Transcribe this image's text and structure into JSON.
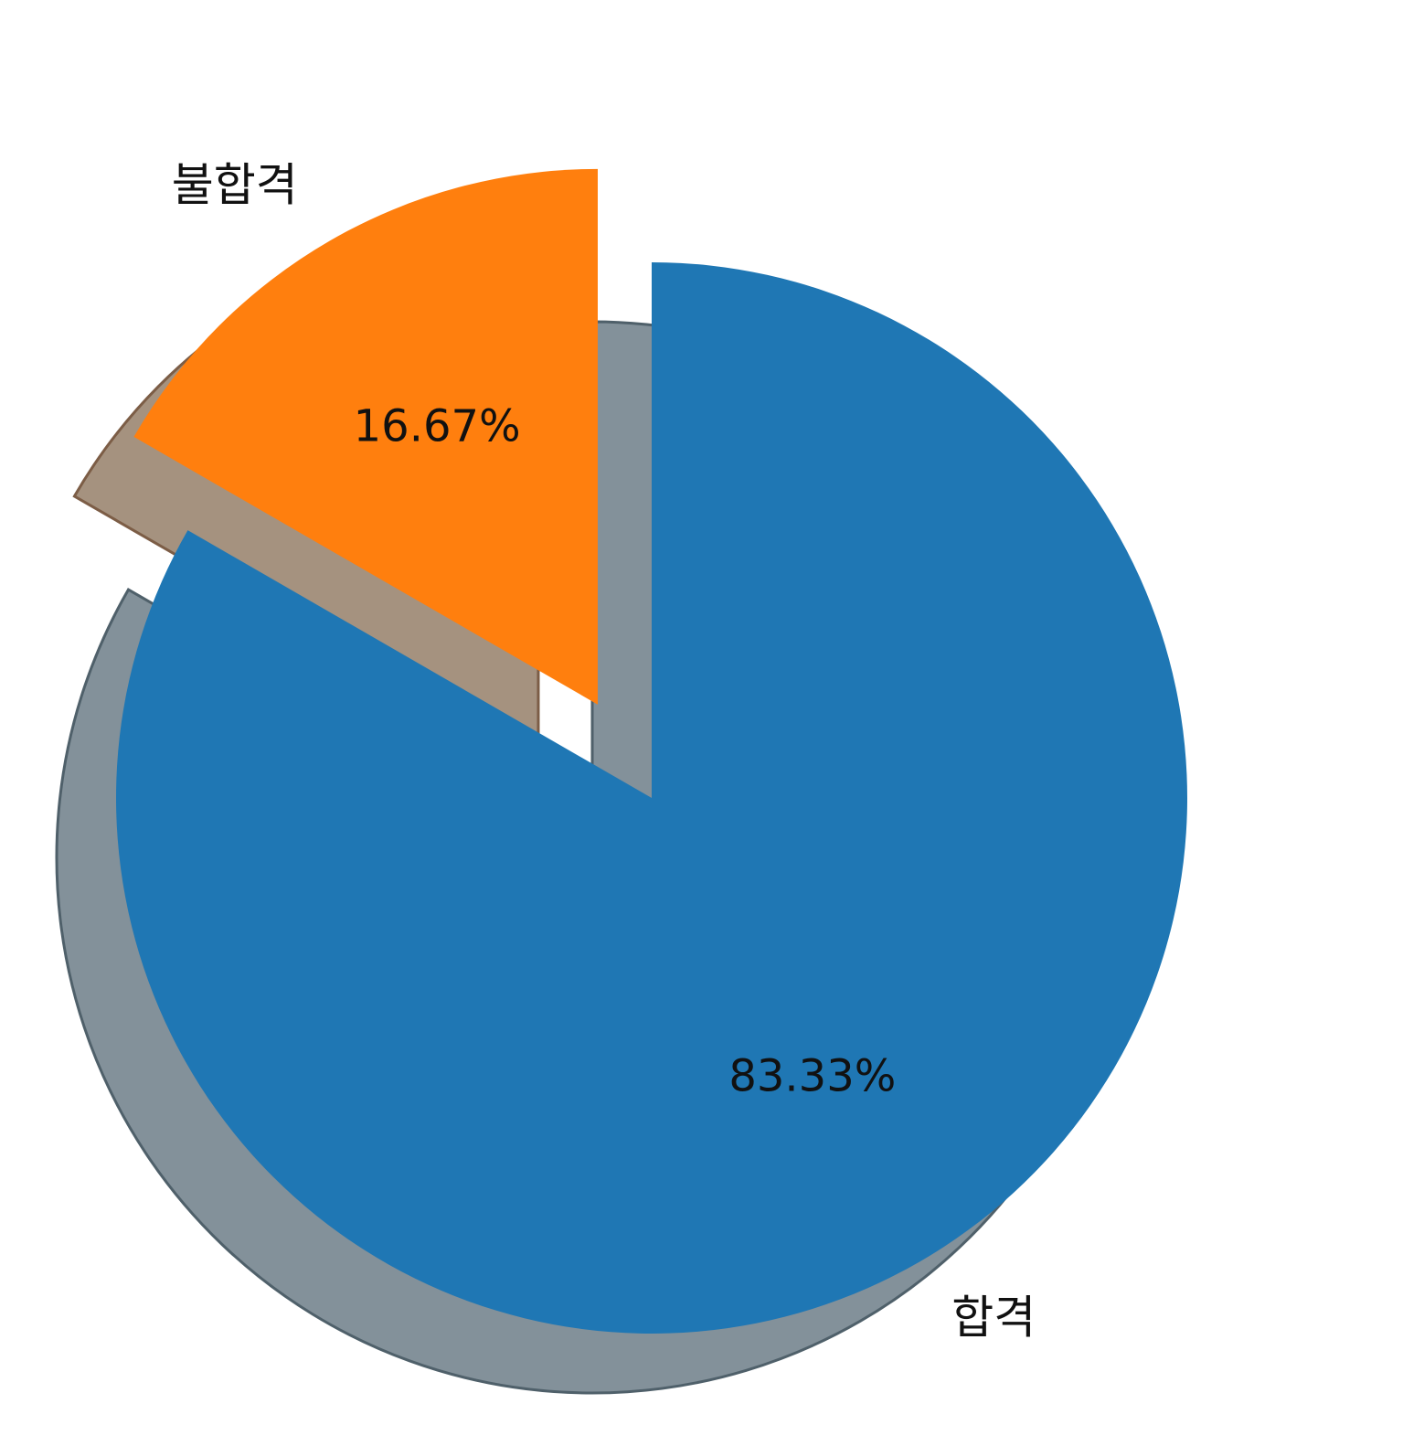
{
  "chart_data": {
    "type": "pie",
    "title": "",
    "categories": [
      "합격",
      "불합격"
    ],
    "values": [
      83.33,
      16.67
    ],
    "value_labels": [
      "83.33%",
      "16.67%"
    ],
    "colors": [
      "#1f77b4",
      "#ff7f0e"
    ],
    "exploded": [
      false,
      true
    ],
    "shadow": true,
    "start_angle_deg": 90,
    "direction": "clockwise",
    "legend": "none"
  }
}
